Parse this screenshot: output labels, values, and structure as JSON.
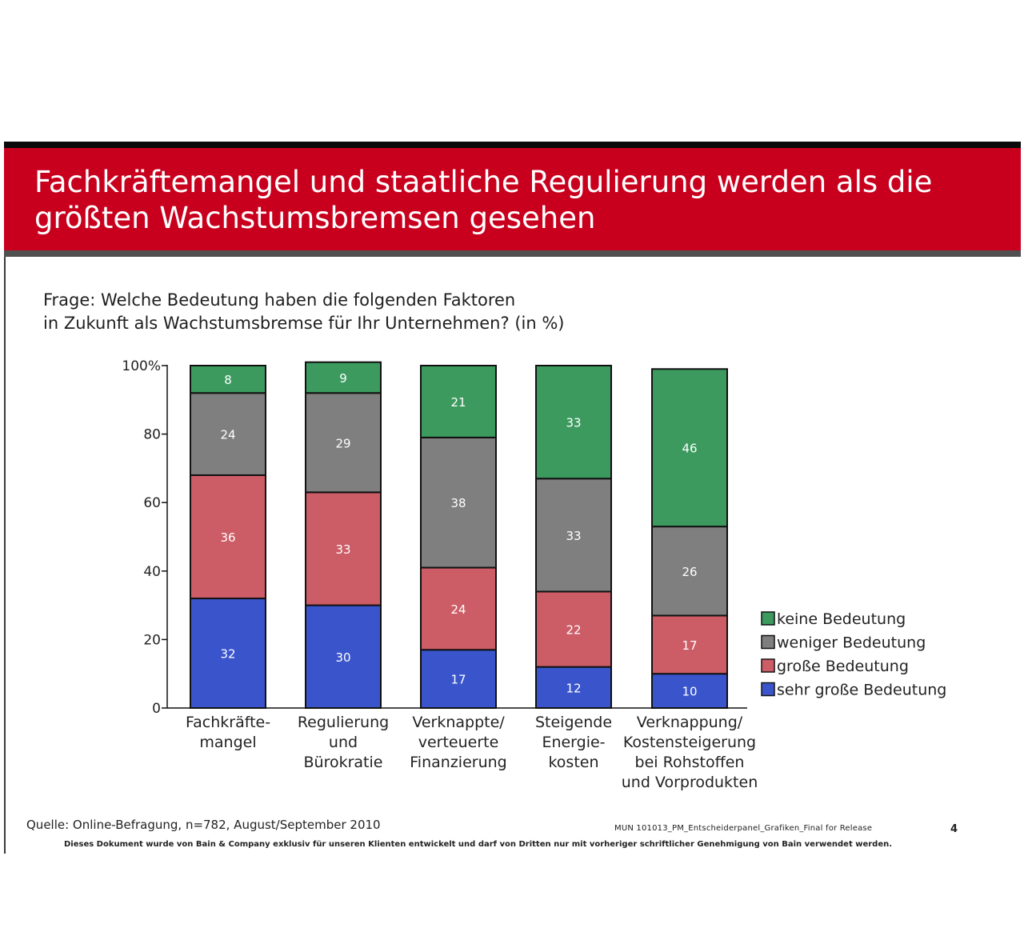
{
  "header": {
    "title_line1": "Fachkräftemangel und staatliche Regulierung werden als die",
    "title_line2": "größten Wachstumsbremsen gesehen",
    "bg_color": "#c8001e"
  },
  "question": {
    "line1": "Frage: Welche Bedeutung haben die folgenden Faktoren",
    "line2": "in Zukunft als Wachstumsbremse für Ihr Unternehmen? (in %)"
  },
  "chart_data": {
    "type": "bar",
    "stacked": true,
    "categories": [
      [
        "Fachkräfte-",
        "mangel"
      ],
      [
        "Regulierung",
        "und",
        "Bürokratie"
      ],
      [
        "Verknappte/",
        "verteuerte",
        "Finanzierung"
      ],
      [
        "Steigende",
        "Energie-",
        "kosten"
      ],
      [
        "Verknappung/",
        "Kostensteigerung",
        "bei Rohstoffen",
        "und Vorprodukten"
      ]
    ],
    "series": [
      {
        "name": "sehr große Bedeutung",
        "color": "#3a55cc",
        "values": [
          32,
          30,
          17,
          12,
          10
        ]
      },
      {
        "name": "große Bedeutung",
        "color": "#cc5c66",
        "values": [
          36,
          33,
          24,
          22,
          17
        ]
      },
      {
        "name": "weniger Bedeutung",
        "color": "#7f7f7f",
        "values": [
          24,
          29,
          38,
          33,
          26
        ]
      },
      {
        "name": "keine Bedeutung",
        "color": "#3c9a5f",
        "values": [
          8,
          9,
          21,
          33,
          46
        ]
      }
    ],
    "ylim": [
      0,
      100
    ],
    "yticks": [
      "0",
      "20",
      "40",
      "60",
      "80",
      "100%"
    ],
    "legend_order": [
      "keine Bedeutung",
      "weniger Bedeutung",
      "große Bedeutung",
      "sehr große Bedeutung"
    ],
    "legend_position": "right"
  },
  "footer": {
    "source": "Quelle: Online-Befragung, n=782, August/September 2010",
    "doc_ref": "MUN   101013_PM_Entscheiderpanel_Grafiken_Final for Release",
    "page": "4",
    "disclaimer": "Dieses Dokument wurde von Bain & Company exklusiv für unseren Klienten entwickelt und darf von Dritten nur mit vorheriger schriftlicher Genehmigung von Bain verwendet werden."
  }
}
